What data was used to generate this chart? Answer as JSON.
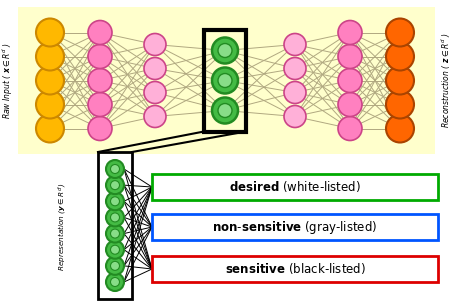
{
  "yellow_color": "#FFB800",
  "pink_color": "#FF80C0",
  "pink_light_color": "#FFB0D8",
  "orange_color": "#FF6600",
  "green_dark": "#228B22",
  "green_fill": "#44BB44",
  "green_light_fill": "#88DD88",
  "conn_color": "#B0A880",
  "conn_color_dark": "#000000",
  "desired_color": "#00AA00",
  "nonsensitive_color": "#0055FF",
  "sensitive_color": "#DD0000",
  "top_bg": "#FFFFCC",
  "raw_input_label": "Raw Input ( $\\boldsymbol{x} \\in R^{d}$ )",
  "recon_label": "Reconstruction ( $\\boldsymbol{z} \\in R^{d}$ )",
  "rep_label": "Representation ($\\boldsymbol{y} \\in R^{d^{\\prime}}$)"
}
